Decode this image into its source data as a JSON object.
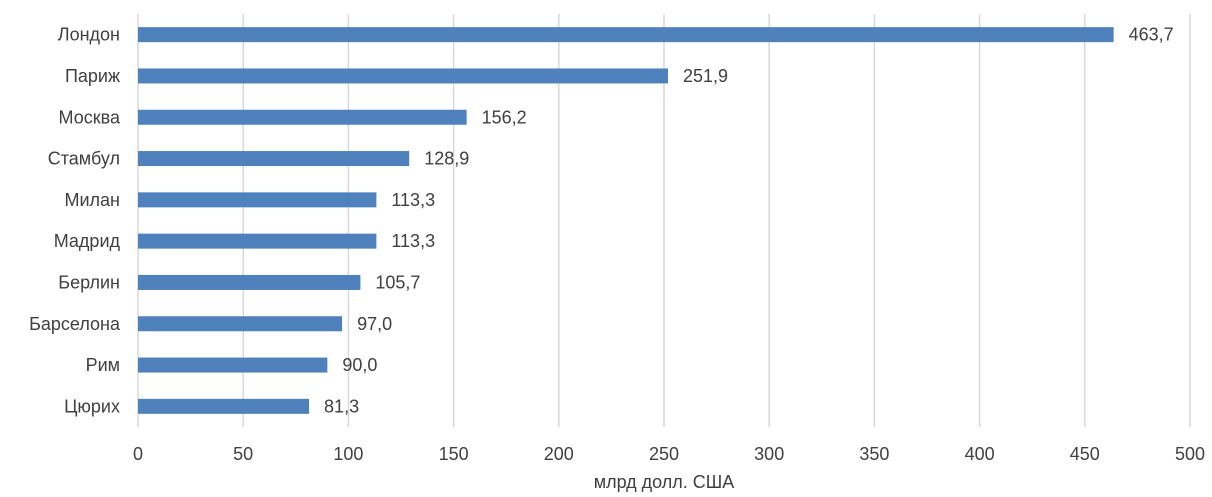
{
  "chart_data": {
    "type": "bar",
    "orientation": "horizontal",
    "categories": [
      "Лондон",
      "Париж",
      "Москва",
      "Стамбул",
      "Милан",
      "Мадрид",
      "Берлин",
      "Барселона",
      "Рим",
      "Цюрих"
    ],
    "values": [
      463.7,
      251.9,
      156.2,
      128.9,
      113.3,
      113.3,
      105.7,
      97.0,
      90.0,
      81.3
    ],
    "value_labels": [
      "463,7",
      "251,9",
      "156,2",
      "128,9",
      "113,3",
      "113,3",
      "105,7",
      "97,0",
      "90,0",
      "81,3"
    ],
    "title": "",
    "xlabel": "млрд долл. США",
    "ylabel": "",
    "xlim": [
      0,
      500
    ],
    "x_ticks": [
      0,
      50,
      100,
      150,
      200,
      250,
      300,
      350,
      400,
      450,
      500
    ],
    "x_tick_labels": [
      "0",
      "50",
      "100",
      "150",
      "200",
      "250",
      "300",
      "350",
      "400",
      "450",
      "500"
    ],
    "grid": "vertical",
    "legend": "none",
    "colors": {
      "bar": "#4f81bd",
      "grid": "#d9d9d9",
      "text": "#404040"
    }
  }
}
